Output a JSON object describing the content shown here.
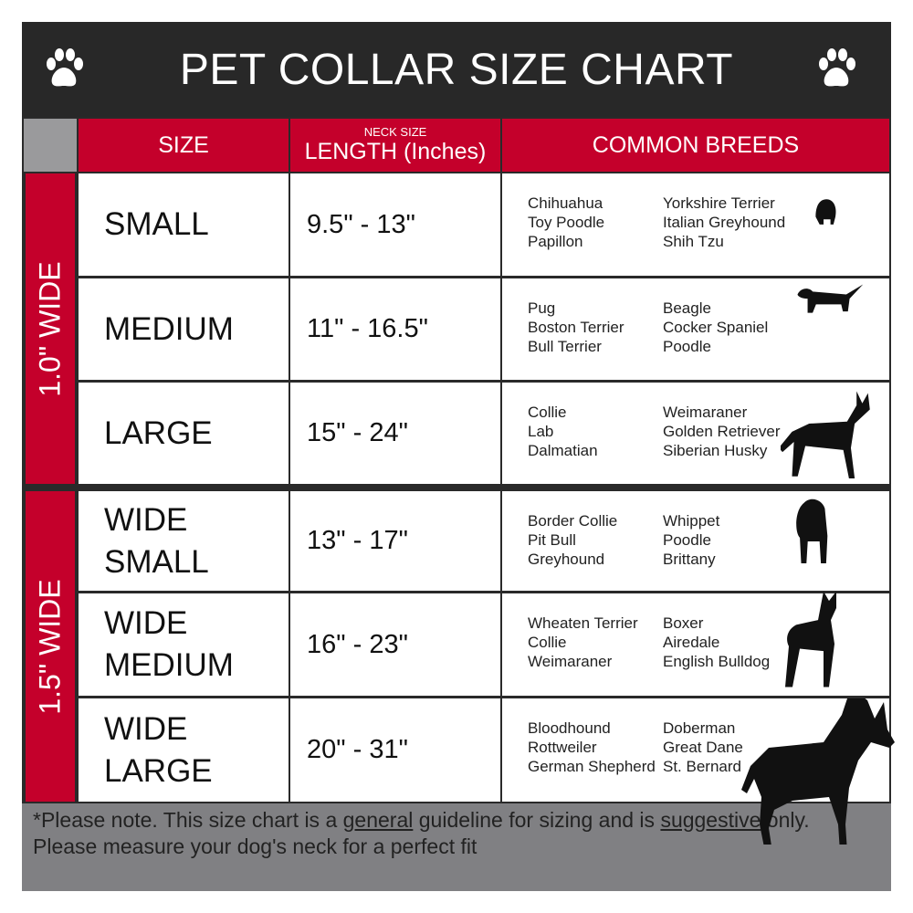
{
  "title": "PET COLLAR SIZE CHART",
  "icons": {
    "left": "paw-print-icon",
    "right": "paw-print-icon"
  },
  "colors": {
    "header_red": "#c4002b",
    "title_bar": "#282828",
    "footer_gray": "#808083"
  },
  "headers": {
    "size": "SIZE",
    "length_small": "NECK SIZE",
    "length": "LENGTH (Inches)",
    "breeds": "COMMON BREEDS"
  },
  "groups": [
    {
      "label": "1.0\" WIDE",
      "rows": [
        {
          "size": "SMALL",
          "length": "9.5\" - 13\"",
          "breeds_a": [
            "Chihuahua",
            "Toy Poodle",
            "Papillon"
          ],
          "breeds_b": [
            "Yorkshire Terrier",
            "Italian Greyhound",
            "Shih Tzu"
          ]
        },
        {
          "size": "MEDIUM",
          "length": "11\" - 16.5\"",
          "breeds_a": [
            "Pug",
            "Boston Terrier",
            "Bull Terrier"
          ],
          "breeds_b": [
            "Beagle",
            "Cocker Spaniel",
            "Poodle"
          ]
        },
        {
          "size": "LARGE",
          "length": "15\" - 24\"",
          "breeds_a": [
            "Collie",
            "Lab",
            "Dalmatian"
          ],
          "breeds_b": [
            "Weimaraner",
            "Golden Retriever",
            "Siberian Husky"
          ]
        }
      ]
    },
    {
      "label": "1.5\" WIDE",
      "rows": [
        {
          "size": "WIDE SMALL",
          "length": "13\" - 17\"",
          "breeds_a": [
            "Border Collie",
            "Pit Bull",
            "Greyhound"
          ],
          "breeds_b": [
            "Whippet",
            "Poodle",
            "Brittany"
          ]
        },
        {
          "size": "WIDE MEDIUM",
          "length": "16\" - 23\"",
          "breeds_a": [
            "Wheaten Terrier",
            "Collie",
            "Weimaraner"
          ],
          "breeds_b": [
            "Boxer",
            "Airedale",
            "English Bulldog"
          ]
        },
        {
          "size": "WIDE LARGE",
          "length": "20\" - 31\"",
          "breeds_a": [
            "Bloodhound",
            "Rottweiler",
            "German Shepherd"
          ],
          "breeds_b": [
            "Doberman",
            "Great Dane",
            "St. Bernard"
          ]
        }
      ]
    }
  ],
  "footer": {
    "p1": "*Please note. This size chart is a ",
    "u1": "general",
    "p2": " guideline for sizing and is ",
    "u2": "suggestive",
    "p3": " only.",
    "line2": "Please measure your dog's neck for a perfect fit"
  }
}
